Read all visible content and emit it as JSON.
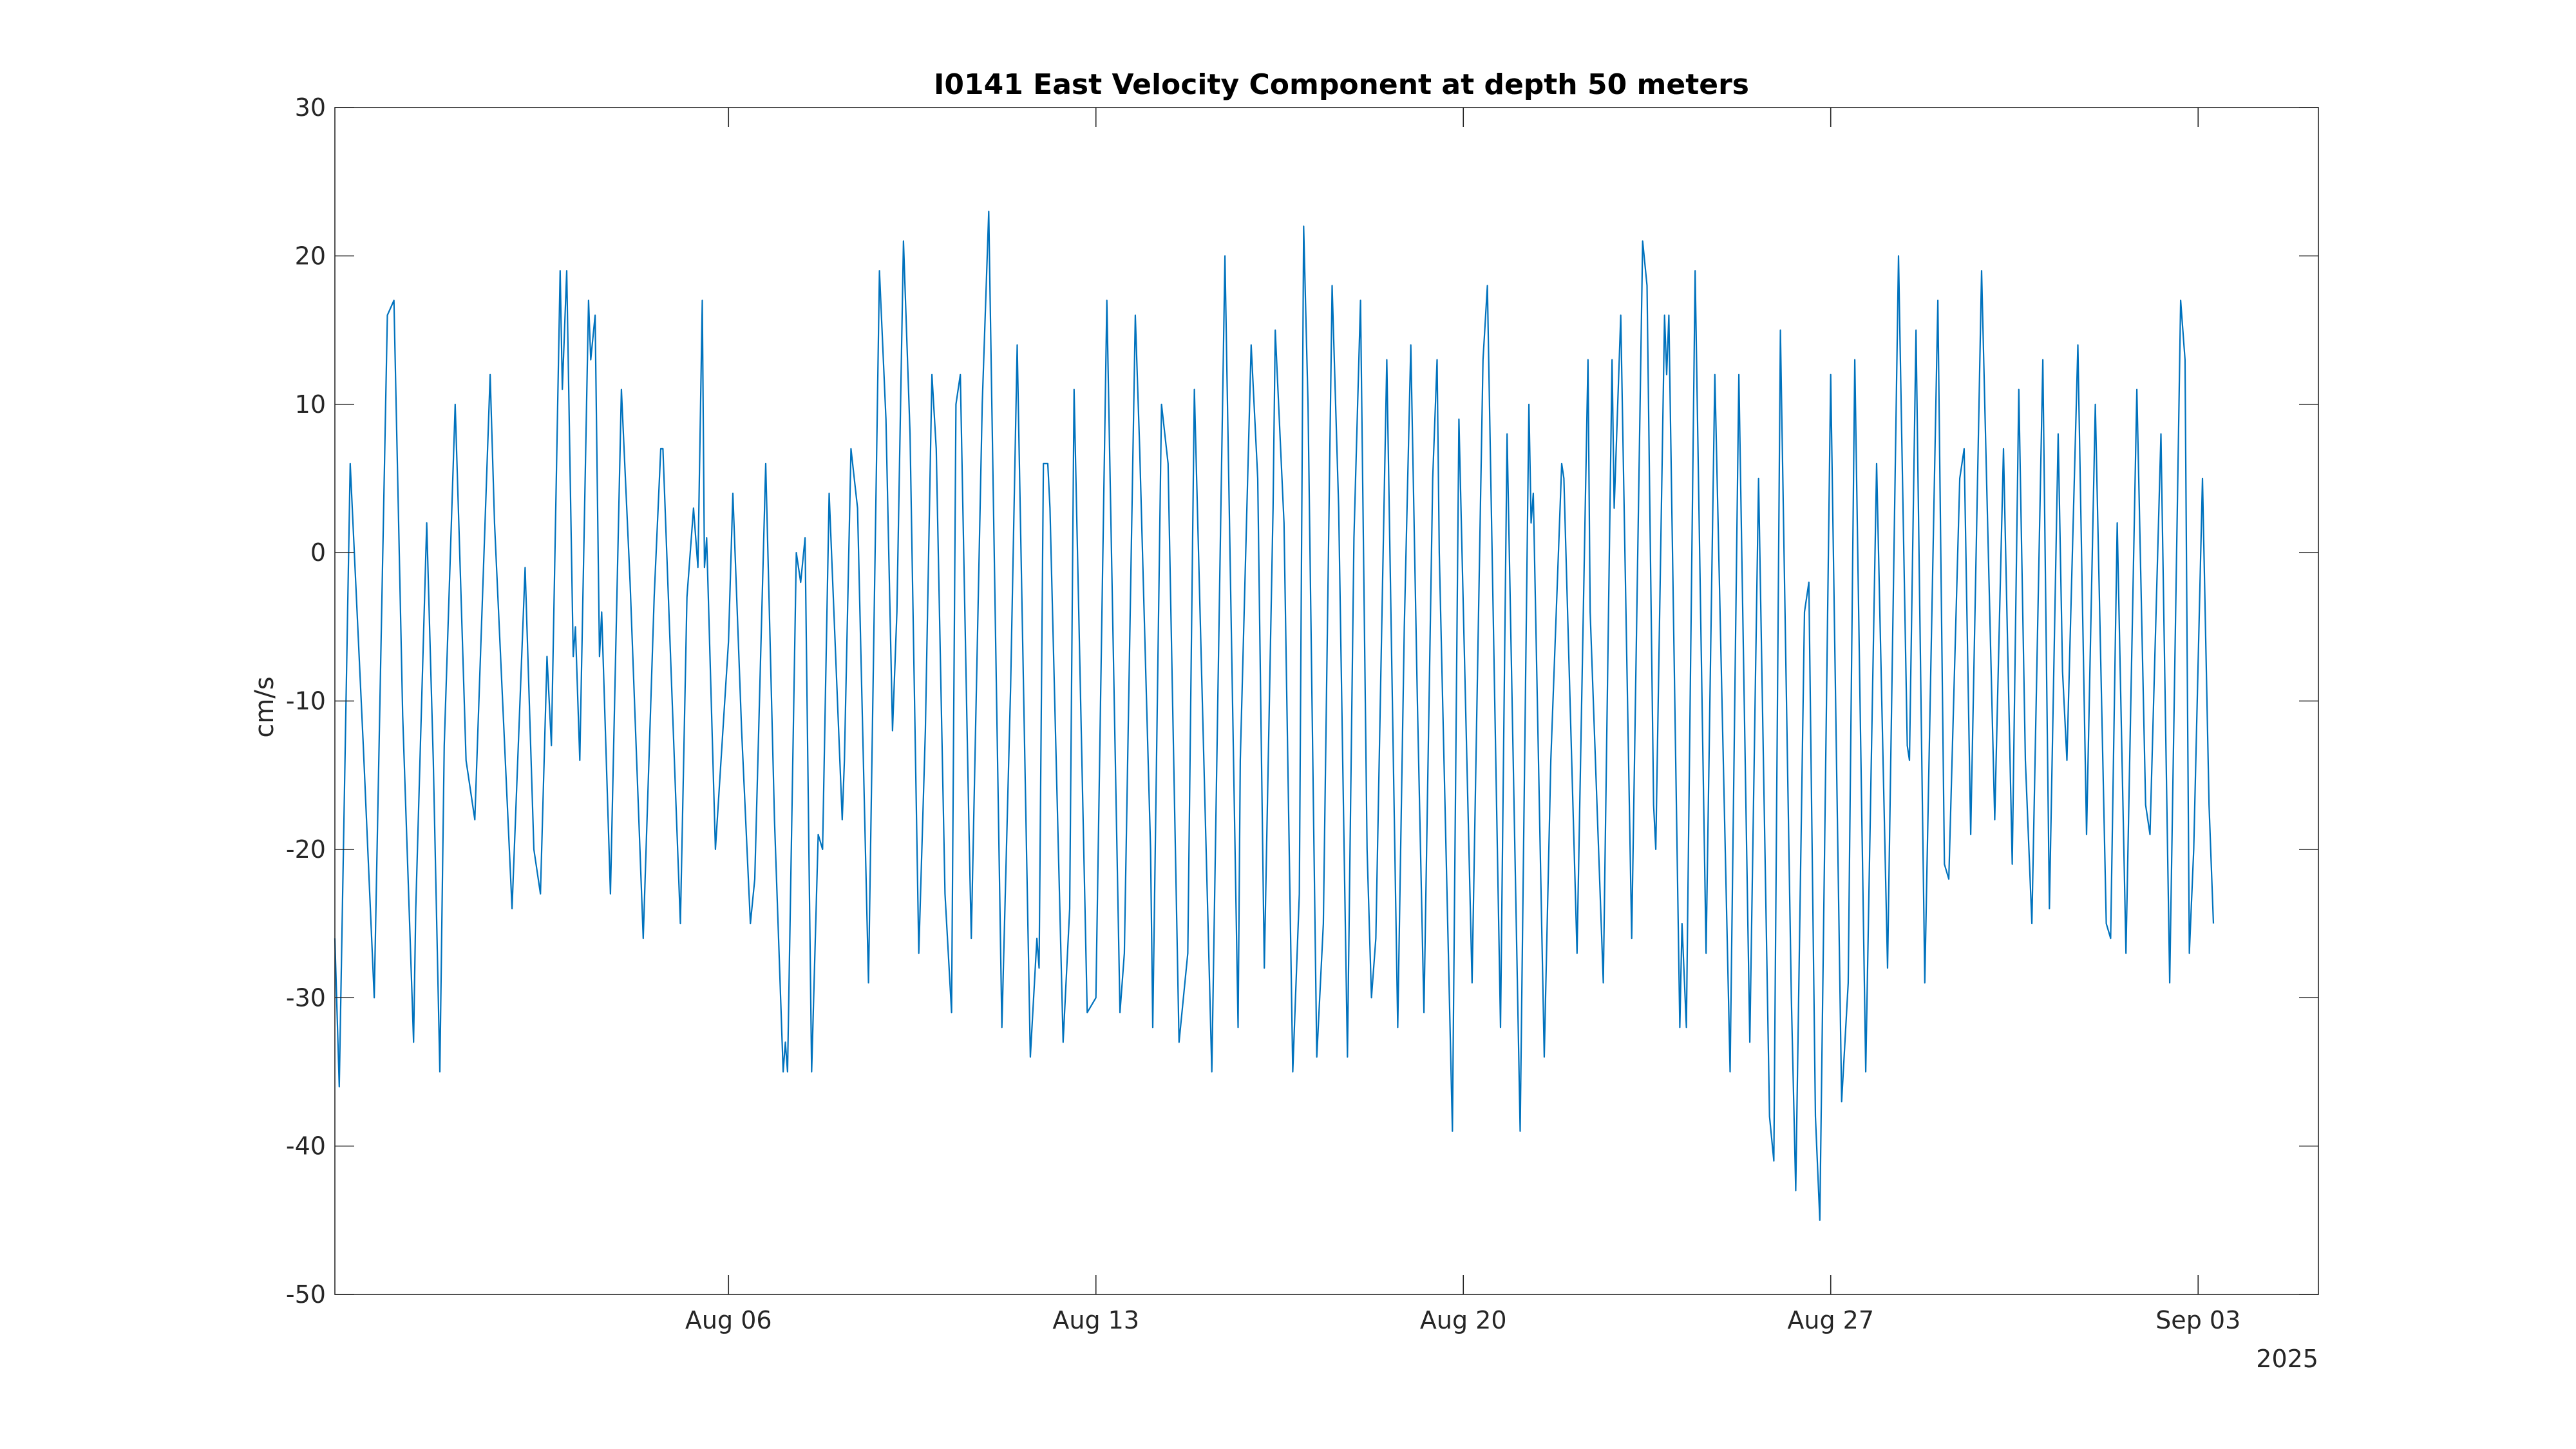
{
  "chart_data": {
    "type": "line",
    "title": "I0141 East Velocity Component at depth 50 meters",
    "xlabel": "",
    "ylabel": "cm/s",
    "x_axis": {
      "type": "date",
      "range": [
        "2025-07-29T12:00",
        "2025-09-05T07:00"
      ],
      "ticks": [
        {
          "value": "2025-08-06",
          "label": "Aug 06"
        },
        {
          "value": "2025-08-13",
          "label": "Aug 13"
        },
        {
          "value": "2025-08-20",
          "label": "Aug 20"
        },
        {
          "value": "2025-08-27",
          "label": "Aug 27"
        },
        {
          "value": "2025-09-03",
          "label": "Sep 03"
        }
      ],
      "year_label": "2025"
    },
    "ylim": [
      -50,
      30
    ],
    "yticks": [
      -50,
      -40,
      -30,
      -20,
      -10,
      0,
      10,
      20,
      30
    ],
    "grid": false,
    "legend": "none",
    "series": [
      {
        "color": "#0072BD",
        "points": [
          [
            "2025-07-29T12:00",
            -26
          ],
          [
            "2025-07-29T14:00",
            -36
          ],
          [
            "2025-07-29T19:00",
            6
          ],
          [
            "2025-07-30T01:00",
            -13
          ],
          [
            "2025-07-30T06:00",
            -30
          ],
          [
            "2025-07-30T12:00",
            16
          ],
          [
            "2025-07-30T15:00",
            17
          ],
          [
            "2025-07-30T19:00",
            -11
          ],
          [
            "2025-07-31T00:00",
            -33
          ],
          [
            "2025-07-31T01:00",
            -24
          ],
          [
            "2025-07-31T06:00",
            2
          ],
          [
            "2025-07-31T09:00",
            -14
          ],
          [
            "2025-07-31T12:00",
            -35
          ],
          [
            "2025-07-31T14:00",
            -13
          ],
          [
            "2025-07-31T19:00",
            10
          ],
          [
            "2025-08-01T00:00",
            -14
          ],
          [
            "2025-08-01T04:00",
            -18
          ],
          [
            "2025-08-01T11:00",
            12
          ],
          [
            "2025-08-01T13:00",
            2
          ],
          [
            "2025-08-01T21:00",
            -24
          ],
          [
            "2025-08-02T03:00",
            -1
          ],
          [
            "2025-08-02T07:00",
            -20
          ],
          [
            "2025-08-02T10:00",
            -23
          ],
          [
            "2025-08-02T13:00",
            -7
          ],
          [
            "2025-08-02T15:00",
            -13
          ],
          [
            "2025-08-02T19:00",
            19
          ],
          [
            "2025-08-02T20:00",
            11
          ],
          [
            "2025-08-02T22:00",
            19
          ],
          [
            "2025-08-03T01:00",
            -7
          ],
          [
            "2025-08-03T02:00",
            -5
          ],
          [
            "2025-08-03T04:00",
            -14
          ],
          [
            "2025-08-03T08:00",
            17
          ],
          [
            "2025-08-03T09:00",
            13
          ],
          [
            "2025-08-03T11:00",
            16
          ],
          [
            "2025-08-03T13:00",
            -7
          ],
          [
            "2025-08-03T14:00",
            -4
          ],
          [
            "2025-08-03T18:00",
            -23
          ],
          [
            "2025-08-03T23:00",
            11
          ],
          [
            "2025-08-04T03:00",
            -2
          ],
          [
            "2025-08-04T09:00",
            -26
          ],
          [
            "2025-08-04T14:00",
            -3
          ],
          [
            "2025-08-04T17:00",
            7
          ],
          [
            "2025-08-04T18:00",
            7
          ],
          [
            "2025-08-05T00:00",
            -17
          ],
          [
            "2025-08-05T02:00",
            -25
          ],
          [
            "2025-08-05T05:00",
            -3
          ],
          [
            "2025-08-05T08:00",
            3
          ],
          [
            "2025-08-05T10:00",
            -1
          ],
          [
            "2025-08-05T12:00",
            17
          ],
          [
            "2025-08-05T13:00",
            -1
          ],
          [
            "2025-08-05T14:00",
            1
          ],
          [
            "2025-08-05T18:00",
            -20
          ],
          [
            "2025-08-06T00:00",
            -6
          ],
          [
            "2025-08-06T02:00",
            4
          ],
          [
            "2025-08-06T06:00",
            -12
          ],
          [
            "2025-08-06T10:00",
            -25
          ],
          [
            "2025-08-06T12:00",
            -22
          ],
          [
            "2025-08-06T17:00",
            6
          ],
          [
            "2025-08-06T21:00",
            -18
          ],
          [
            "2025-08-07T01:00",
            -35
          ],
          [
            "2025-08-07T02:00",
            -33
          ],
          [
            "2025-08-07T03:00",
            -35
          ],
          [
            "2025-08-07T07:00",
            0
          ],
          [
            "2025-08-07T09:00",
            -2
          ],
          [
            "2025-08-07T11:00",
            1
          ],
          [
            "2025-08-07T14:00",
            -35
          ],
          [
            "2025-08-07T17:00",
            -19
          ],
          [
            "2025-08-07T19:00",
            -20
          ],
          [
            "2025-08-07T22:00",
            4
          ],
          [
            "2025-08-08T04:00",
            -18
          ],
          [
            "2025-08-08T05:00",
            -14
          ],
          [
            "2025-08-08T08:00",
            7
          ],
          [
            "2025-08-08T11:00",
            3
          ],
          [
            "2025-08-08T16:00",
            -29
          ],
          [
            "2025-08-08T21:00",
            19
          ],
          [
            "2025-08-09T00:00",
            9
          ],
          [
            "2025-08-09T03:00",
            -12
          ],
          [
            "2025-08-09T05:00",
            -4
          ],
          [
            "2025-08-09T08:00",
            21
          ],
          [
            "2025-08-09T11:00",
            8
          ],
          [
            "2025-08-09T15:00",
            -27
          ],
          [
            "2025-08-09T18:00",
            -12
          ],
          [
            "2025-08-09T21:00",
            12
          ],
          [
            "2025-08-09T23:00",
            7
          ],
          [
            "2025-08-10T03:00",
            -23
          ],
          [
            "2025-08-10T06:00",
            -31
          ],
          [
            "2025-08-10T08:00",
            10
          ],
          [
            "2025-08-10T10:00",
            12
          ],
          [
            "2025-08-10T14:00",
            -19
          ],
          [
            "2025-08-10T15:00",
            -26
          ],
          [
            "2025-08-10T20:00",
            10
          ],
          [
            "2025-08-10T23:00",
            23
          ],
          [
            "2025-08-11T05:00",
            -32
          ],
          [
            "2025-08-11T09:00",
            -9
          ],
          [
            "2025-08-11T12:00",
            14
          ],
          [
            "2025-08-11T18:00",
            -34
          ],
          [
            "2025-08-11T21:00",
            -26
          ],
          [
            "2025-08-11T22:00",
            -28
          ],
          [
            "2025-08-12T00:00",
            6
          ],
          [
            "2025-08-12T02:00",
            6
          ],
          [
            "2025-08-12T03:00",
            3
          ],
          [
            "2025-08-12T09:00",
            -33
          ],
          [
            "2025-08-12T12:00",
            -24
          ],
          [
            "2025-08-12T14:00",
            11
          ],
          [
            "2025-08-12T20:00",
            -31
          ],
          [
            "2025-08-13T00:00",
            -30
          ],
          [
            "2025-08-13T05:00",
            17
          ],
          [
            "2025-08-13T11:00",
            -31
          ],
          [
            "2025-08-13T13:00",
            -27
          ],
          [
            "2025-08-13T18:00",
            16
          ],
          [
            "2025-08-13T20:00",
            7
          ],
          [
            "2025-08-14T01:00",
            -20
          ],
          [
            "2025-08-14T02:00",
            -32
          ],
          [
            "2025-08-14T06:00",
            10
          ],
          [
            "2025-08-14T09:00",
            6
          ],
          [
            "2025-08-14T14:00",
            -33
          ],
          [
            "2025-08-14T18:00",
            -27
          ],
          [
            "2025-08-14T21:00",
            11
          ],
          [
            "2025-08-15T05:00",
            -35
          ],
          [
            "2025-08-15T11:00",
            20
          ],
          [
            "2025-08-15T17:00",
            -32
          ],
          [
            "2025-08-15T18:00",
            -14
          ],
          [
            "2025-08-15T23:00",
            14
          ],
          [
            "2025-08-16T02:00",
            5
          ],
          [
            "2025-08-16T05:00",
            -28
          ],
          [
            "2025-08-16T09:00",
            3
          ],
          [
            "2025-08-16T10:00",
            15
          ],
          [
            "2025-08-16T14:00",
            2
          ],
          [
            "2025-08-16T18:00",
            -35
          ],
          [
            "2025-08-16T21:00",
            -23
          ],
          [
            "2025-08-16T23:00",
            22
          ],
          [
            "2025-08-17T01:00",
            10
          ],
          [
            "2025-08-17T05:00",
            -34
          ],
          [
            "2025-08-17T08:00",
            -25
          ],
          [
            "2025-08-17T12:00",
            18
          ],
          [
            "2025-08-17T15:00",
            3
          ],
          [
            "2025-08-17T19:00",
            -34
          ],
          [
            "2025-08-17T22:00",
            1
          ],
          [
            "2025-08-18T01:00",
            17
          ],
          [
            "2025-08-18T04:00",
            -20
          ],
          [
            "2025-08-18T06:00",
            -30
          ],
          [
            "2025-08-18T08:00",
            -26
          ],
          [
            "2025-08-18T13:00",
            13
          ],
          [
            "2025-08-18T18:00",
            -32
          ],
          [
            "2025-08-18T21:00",
            -5
          ],
          [
            "2025-08-19T00:00",
            14
          ],
          [
            "2025-08-19T03:00",
            -10
          ],
          [
            "2025-08-19T06:00",
            -31
          ],
          [
            "2025-08-19T10:00",
            5
          ],
          [
            "2025-08-19T12:00",
            13
          ],
          [
            "2025-08-19T13:00",
            0
          ],
          [
            "2025-08-19T19:00",
            -39
          ],
          [
            "2025-08-19T22:00",
            9
          ],
          [
            "2025-08-20T04:00",
            -29
          ],
          [
            "2025-08-20T09:00",
            13
          ],
          [
            "2025-08-20T11:00",
            18
          ],
          [
            "2025-08-20T17:00",
            -32
          ],
          [
            "2025-08-20T20:00",
            8
          ],
          [
            "2025-08-21T02:00",
            -39
          ],
          [
            "2025-08-21T06:00",
            10
          ],
          [
            "2025-08-21T07:00",
            2
          ],
          [
            "2025-08-21T08:00",
            4
          ],
          [
            "2025-08-21T13:00",
            -34
          ],
          [
            "2025-08-21T16:00",
            -14
          ],
          [
            "2025-08-21T21:00",
            6
          ],
          [
            "2025-08-21T22:00",
            5
          ],
          [
            "2025-08-22T04:00",
            -27
          ],
          [
            "2025-08-22T09:00",
            13
          ],
          [
            "2025-08-22T10:00",
            -4
          ],
          [
            "2025-08-22T16:00",
            -29
          ],
          [
            "2025-08-22T20:00",
            13
          ],
          [
            "2025-08-22T21:00",
            3
          ],
          [
            "2025-08-23T00:00",
            16
          ],
          [
            "2025-08-23T05:00",
            -26
          ],
          [
            "2025-08-23T10:00",
            21
          ],
          [
            "2025-08-23T12:00",
            18
          ],
          [
            "2025-08-23T15:00",
            -17
          ],
          [
            "2025-08-23T16:00",
            -20
          ],
          [
            "2025-08-23T20:00",
            16
          ],
          [
            "2025-08-23T21:00",
            12
          ],
          [
            "2025-08-23T22:00",
            16
          ],
          [
            "2025-08-24T03:00",
            -32
          ],
          [
            "2025-08-24T04:00",
            -25
          ],
          [
            "2025-08-24T06:00",
            -32
          ],
          [
            "2025-08-24T10:00",
            19
          ],
          [
            "2025-08-24T15:00",
            -27
          ],
          [
            "2025-08-24T19:00",
            12
          ],
          [
            "2025-08-24T22:00",
            -8
          ],
          [
            "2025-08-25T02:00",
            -35
          ],
          [
            "2025-08-25T06:00",
            12
          ],
          [
            "2025-08-25T11:00",
            -33
          ],
          [
            "2025-08-25T15:00",
            5
          ],
          [
            "2025-08-25T20:00",
            -38
          ],
          [
            "2025-08-25T22:00",
            -41
          ],
          [
            "2025-08-26T01:00",
            15
          ],
          [
            "2025-08-26T06:00",
            -30
          ],
          [
            "2025-08-26T08:00",
            -43
          ],
          [
            "2025-08-26T12:00",
            -4
          ],
          [
            "2025-08-26T14:00",
            -2
          ],
          [
            "2025-08-26T17:00",
            -38
          ],
          [
            "2025-08-26T19:00",
            -45
          ],
          [
            "2025-08-27T00:00",
            12
          ],
          [
            "2025-08-27T05:00",
            -37
          ],
          [
            "2025-08-27T08:00",
            -29
          ],
          [
            "2025-08-27T11:00",
            13
          ],
          [
            "2025-08-27T16:00",
            -35
          ],
          [
            "2025-08-27T21:00",
            6
          ],
          [
            "2025-08-28T02:00",
            -28
          ],
          [
            "2025-08-28T07:00",
            20
          ],
          [
            "2025-08-28T11:00",
            -13
          ],
          [
            "2025-08-28T12:00",
            -14
          ],
          [
            "2025-08-28T15:00",
            15
          ],
          [
            "2025-08-28T19:00",
            -29
          ],
          [
            "2025-08-29T01:00",
            17
          ],
          [
            "2025-08-29T04:00",
            -21
          ],
          [
            "2025-08-29T06:00",
            -22
          ],
          [
            "2025-08-29T11:00",
            5
          ],
          [
            "2025-08-29T13:00",
            7
          ],
          [
            "2025-08-29T16:00",
            -19
          ],
          [
            "2025-08-29T21:00",
            19
          ],
          [
            "2025-08-30T03:00",
            -18
          ],
          [
            "2025-08-30T07:00",
            7
          ],
          [
            "2025-08-30T11:00",
            -21
          ],
          [
            "2025-08-30T14:00",
            11
          ],
          [
            "2025-08-30T17:00",
            -14
          ],
          [
            "2025-08-30T20:00",
            -25
          ],
          [
            "2025-08-31T01:00",
            13
          ],
          [
            "2025-08-31T04:00",
            -24
          ],
          [
            "2025-08-31T08:00",
            8
          ],
          [
            "2025-08-31T10:00",
            -8
          ],
          [
            "2025-08-31T12:00",
            -14
          ],
          [
            "2025-08-31T17:00",
            14
          ],
          [
            "2025-08-31T21:00",
            -19
          ],
          [
            "2025-09-01T01:00",
            10
          ],
          [
            "2025-09-01T06:00",
            -25
          ],
          [
            "2025-09-01T08:00",
            -26
          ],
          [
            "2025-09-01T11:00",
            2
          ],
          [
            "2025-09-01T15:00",
            -27
          ],
          [
            "2025-09-01T20:00",
            11
          ],
          [
            "2025-09-02T00:00",
            -17
          ],
          [
            "2025-09-02T02:00",
            -19
          ],
          [
            "2025-09-02T07:00",
            8
          ],
          [
            "2025-09-02T11:00",
            -29
          ],
          [
            "2025-09-02T16:00",
            17
          ],
          [
            "2025-09-02T18:00",
            13
          ],
          [
            "2025-09-02T20:00",
            -27
          ],
          [
            "2025-09-02T22:00",
            -20
          ],
          [
            "2025-09-03T02:00",
            5
          ],
          [
            "2025-09-03T05:00",
            -17
          ],
          [
            "2025-09-03T07:00",
            -25
          ]
        ]
      }
    ]
  }
}
